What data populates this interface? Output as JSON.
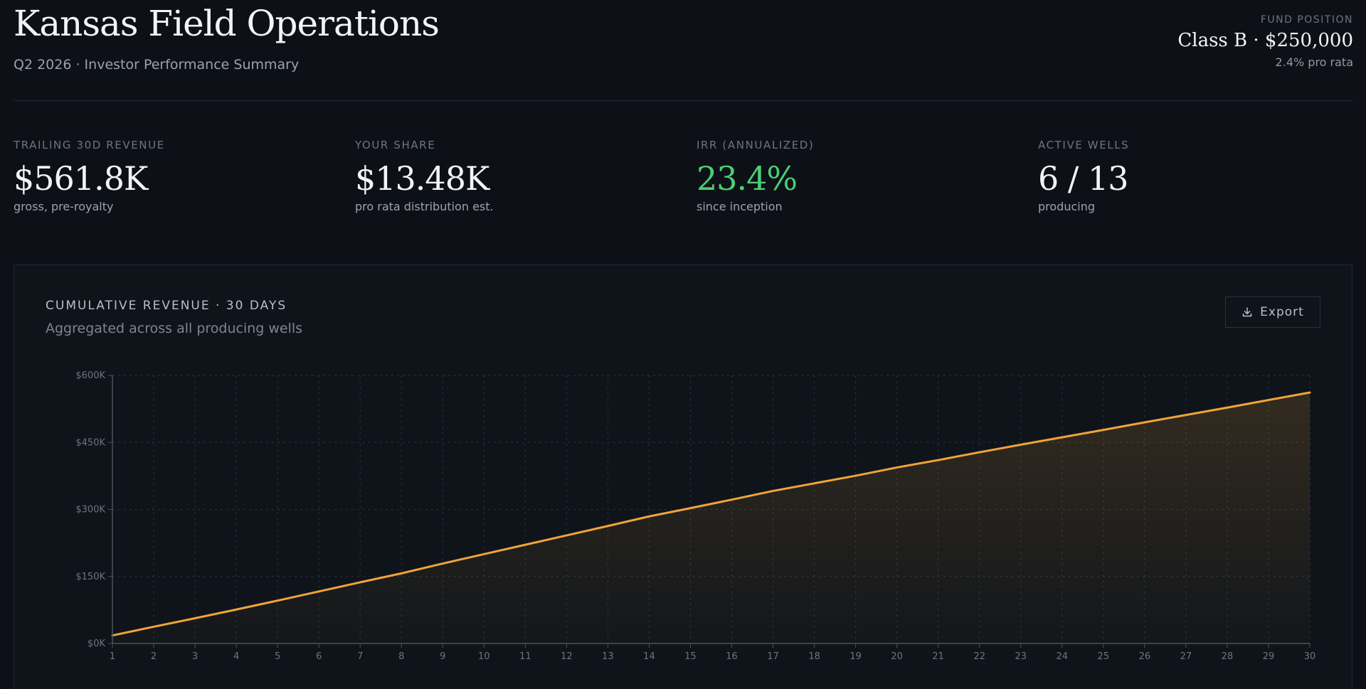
{
  "header": {
    "title": "Kansas Field Operations",
    "subtitle": "Q2 2026 · Investor Performance Summary",
    "fund": {
      "label": "FUND POSITION",
      "value": "Class B · $250,000",
      "sub": "2.4% pro rata"
    }
  },
  "metrics": [
    {
      "label": "TRAILING 30D REVENUE",
      "value": "$561.8K",
      "note": "gross, pre-royalty"
    },
    {
      "label": "YOUR SHARE",
      "value": "$13.48K",
      "note": "pro rata distribution est."
    },
    {
      "label": "IRR (ANNUALIZED)",
      "value": "23.4%",
      "note": "since inception"
    },
    {
      "label": "ACTIVE WELLS",
      "value": "6 / 13",
      "note": "producing"
    }
  ],
  "chart_card": {
    "title": "CUMULATIVE REVENUE · 30 DAYS",
    "subtitle": "Aggregated across all producing wells",
    "export_label": "Export"
  },
  "colors": {
    "background": "#0d1117",
    "accent_line": "#f0a43a",
    "positive": "#4ccf72"
  },
  "icons": {
    "export": "download-icon"
  },
  "chart_data": {
    "type": "area",
    "x": [
      1,
      2,
      3,
      4,
      5,
      6,
      7,
      8,
      9,
      10,
      11,
      12,
      13,
      14,
      15,
      16,
      17,
      18,
      19,
      20,
      21,
      22,
      23,
      24,
      25,
      26,
      27,
      28,
      29,
      30
    ],
    "series": [
      {
        "values": [
          18000,
          37500,
          56500,
          76000,
          96000,
          116500,
          137000,
          157000,
          179000,
          200000,
          221000,
          242000,
          263000,
          284500,
          303000,
          322000,
          341500,
          358500,
          375500,
          394000,
          410500,
          428000,
          445000,
          461500,
          478000,
          495000,
          511500,
          528000,
          545000,
          561800
        ]
      }
    ],
    "xlabel": "",
    "ylabel": "",
    "ylim": [
      0,
      600000
    ],
    "yticks": [
      0,
      150000,
      300000,
      450000,
      600000
    ],
    "ytick_labels": [
      "$0K",
      "$150K",
      "$300K",
      "$450K",
      "$600K"
    ],
    "grid": true,
    "legend": "none"
  }
}
